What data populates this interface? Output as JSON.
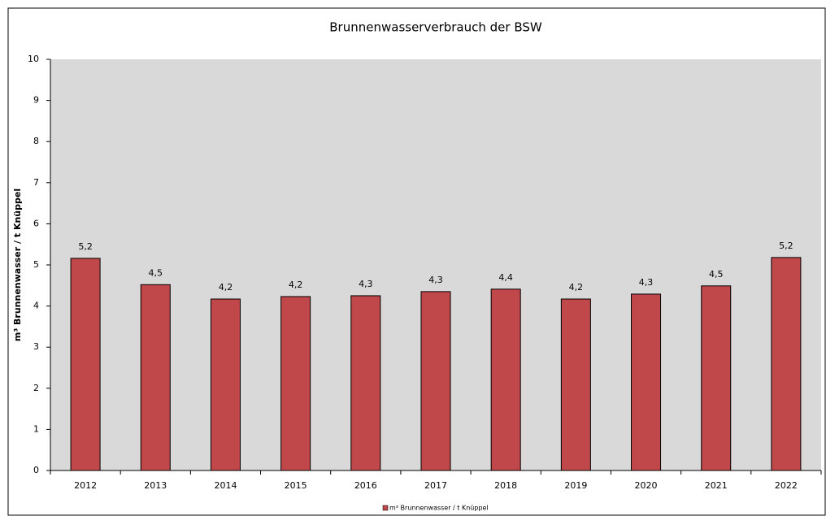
{
  "chart_data": {
    "type": "bar",
    "title": "Brunnenwasserverbrauch der BSW",
    "y_label": "m³ Brunnenwasser  / t Knüppel",
    "categories": [
      "2012",
      "2013",
      "2014",
      "2015",
      "2016",
      "2017",
      "2018",
      "2019",
      "2020",
      "2021",
      "2022"
    ],
    "series": [
      {
        "name": "m³ Brunnenwasser / t Knüppel",
        "color": "#c0474a",
        "values": [
          5.16,
          4.52,
          4.17,
          4.23,
          4.25,
          4.35,
          4.41,
          4.17,
          4.29,
          4.49,
          5.18
        ],
        "value_labels": [
          "5,2",
          "4,5",
          "4,2",
          "4,2",
          "4,3",
          "4,3",
          "4,4",
          "4,2",
          "4,3",
          "4,5",
          "5,2"
        ]
      }
    ],
    "ylim": [
      0,
      10
    ],
    "yticks": [
      0,
      1,
      2,
      3,
      4,
      5,
      6,
      7,
      8,
      9,
      10
    ],
    "grid": false,
    "legend": "bottom"
  }
}
